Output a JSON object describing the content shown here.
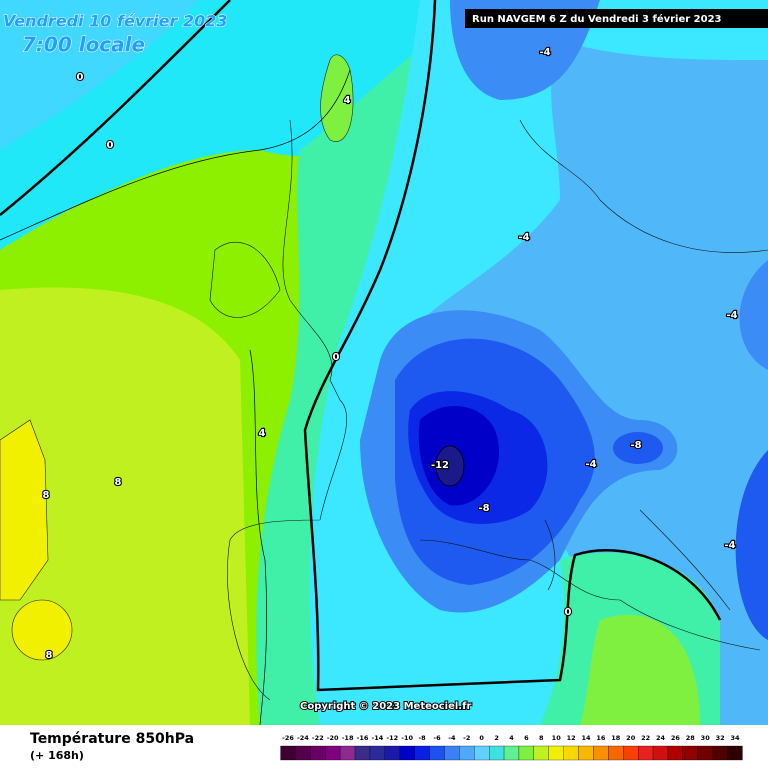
{
  "header": {
    "valid_time": "Vendredi 10 février 2023",
    "local_time": "7:00 locale",
    "run": "Run NAVGEM 6 Z du Vendredi 3 février 2023"
  },
  "map": {
    "contour_labels": [
      "-4",
      "0",
      "4",
      "0",
      "-4",
      "-4",
      "0",
      "4",
      "-12",
      "-8",
      "-4",
      "-8",
      "8",
      "8",
      "8",
      "0",
      "-4"
    ],
    "copyright": "Copyright © 2023 Meteociel.fr"
  },
  "footer": {
    "title": "Température 850hPa",
    "lead": "(+ 168h)"
  },
  "scale": {
    "labels": [
      "-26",
      "-24",
      "-22",
      "-20",
      "-18",
      "-16",
      "-14",
      "-12",
      "-10",
      "-8",
      "-6",
      "-4",
      "-2",
      "0",
      "2",
      "4",
      "6",
      "8",
      "10",
      "12",
      "14",
      "16",
      "18",
      "20",
      "22",
      "24",
      "26",
      "28",
      "30",
      "32",
      "34"
    ],
    "colors": [
      "#3d0030",
      "#55004a",
      "#6a0066",
      "#7f0080",
      "#8b2a8f",
      "#3a2a8a",
      "#2a2a9a",
      "#1a1aa8",
      "#0000c8",
      "#0a1ee6",
      "#1e50f0",
      "#3c80f5",
      "#50a8f8",
      "#60d0ff",
      "#40e0e0",
      "#60f090",
      "#80f040",
      "#c0f020",
      "#f0f000",
      "#f8d800",
      "#f8b800",
      "#f89000",
      "#f86800",
      "#f84000",
      "#e82020",
      "#d01010",
      "#b00000",
      "#900000",
      "#700000",
      "#500000",
      "#300000"
    ]
  }
}
